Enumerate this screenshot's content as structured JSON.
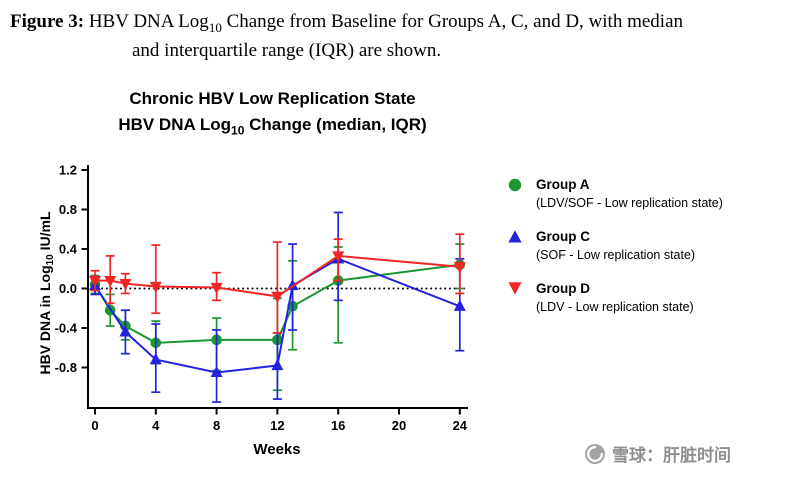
{
  "caption": {
    "figure_label": "Figure 3:",
    "line1_pre_sub": " HBV DNA Log",
    "line1_sub": "10",
    "line1_post_sub": " Change from Baseline for Groups A, C, and D, with median",
    "line2": "and interquartile range (IQR) are shown."
  },
  "chart_data": {
    "type": "line",
    "title_line1": "Chronic HBV Low Replication State",
    "title_line2_pre": "HBV DNA Log",
    "title_line2_sub": "10",
    "title_line2_post": " Change (median, IQR)",
    "xlabel": "Weeks",
    "ylabel_pre": "HBV DNA in Log",
    "ylabel_sub": "10",
    "ylabel_post": " IU/mL",
    "x_ticks": [
      0,
      4,
      8,
      12,
      16,
      20,
      24
    ],
    "y_ticks": [
      1.2,
      0.8,
      0.4,
      0.0,
      -0.4,
      -0.8
    ],
    "xlim": [
      0,
      24.5
    ],
    "ylim": [
      -1.2,
      1.2
    ],
    "grid": false,
    "legend_position": "right",
    "baseline_y": 0,
    "baseline_style": "dotted",
    "series": [
      {
        "name": "Group A",
        "legend_sub": "(LDV/SOF - Low replication state)",
        "color": "#1a9632",
        "marker": "circle",
        "points": [
          {
            "x": 0,
            "y": 0.04,
            "lo": -0.05,
            "hi": 0.13
          },
          {
            "x": 1,
            "y": -0.22,
            "lo": -0.38,
            "hi": -0.06
          },
          {
            "x": 2,
            "y": -0.38,
            "lo": -0.52,
            "hi": -0.22
          },
          {
            "x": 4,
            "y": -0.55,
            "lo": -0.76,
            "hi": -0.33
          },
          {
            "x": 8,
            "y": -0.52,
            "lo": -0.83,
            "hi": -0.3
          },
          {
            "x": 12,
            "y": -0.52,
            "lo": -1.03,
            "hi": -0.1
          },
          {
            "x": 13,
            "y": -0.18,
            "lo": -0.62,
            "hi": 0.28
          },
          {
            "x": 16,
            "y": 0.08,
            "lo": -0.55,
            "hi": 0.42
          },
          {
            "x": 24,
            "y": 0.24,
            "lo": 0.0,
            "hi": 0.45
          }
        ]
      },
      {
        "name": "Group C",
        "legend_sub": "(SOF - Low replication state)",
        "color": "#2323dd",
        "marker": "triangle-up",
        "points": [
          {
            "x": 0,
            "y": 0.03,
            "lo": -0.06,
            "hi": 0.12
          },
          {
            "x": 2,
            "y": -0.44,
            "lo": -0.66,
            "hi": -0.22
          },
          {
            "x": 4,
            "y": -0.72,
            "lo": -1.05,
            "hi": -0.36
          },
          {
            "x": 8,
            "y": -0.85,
            "lo": -1.15,
            "hi": -0.42
          },
          {
            "x": 12,
            "y": -0.78,
            "lo": -1.12,
            "hi": -0.45
          },
          {
            "x": 13,
            "y": 0.03,
            "lo": -0.42,
            "hi": 0.45
          },
          {
            "x": 16,
            "y": 0.3,
            "lo": -0.12,
            "hi": 0.77
          },
          {
            "x": 24,
            "y": -0.18,
            "lo": -0.63,
            "hi": 0.3
          }
        ]
      },
      {
        "name": "Group D",
        "legend_sub": "(LDV - Low replication state)",
        "color": "#f22525",
        "marker": "triangle-down",
        "points": [
          {
            "x": 0,
            "y": 0.08,
            "lo": -0.02,
            "hi": 0.18
          },
          {
            "x": 1,
            "y": 0.08,
            "lo": -0.15,
            "hi": 0.33
          },
          {
            "x": 2,
            "y": 0.05,
            "lo": -0.05,
            "hi": 0.15
          },
          {
            "x": 4,
            "y": 0.02,
            "lo": -0.25,
            "hi": 0.44
          },
          {
            "x": 8,
            "y": 0.01,
            "lo": -0.12,
            "hi": 0.16
          },
          {
            "x": 12,
            "y": -0.08,
            "lo": -0.45,
            "hi": 0.47
          },
          {
            "x": 16,
            "y": 0.33,
            "lo": 0.08,
            "hi": 0.5
          },
          {
            "x": 24,
            "y": 0.22,
            "lo": -0.05,
            "hi": 0.55
          }
        ]
      }
    ]
  },
  "watermark": {
    "icon": "xueqiu-snowball-icon",
    "text": "雪球：肝脏时间",
    "color": "#8f8f8f"
  }
}
